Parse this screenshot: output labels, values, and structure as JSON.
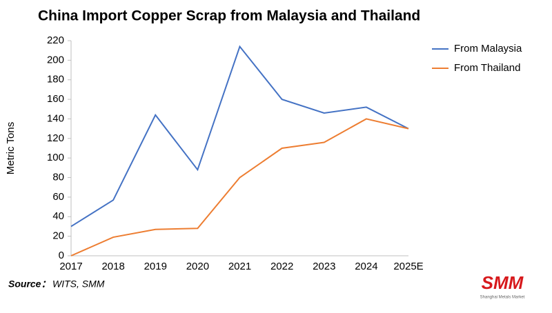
{
  "chart_data": {
    "type": "line",
    "title": "China Import Copper Scrap from Malaysia and Thailand",
    "y_label": "Metric Tons",
    "categories": [
      "2017",
      "2018",
      "2019",
      "2020",
      "2021",
      "2022",
      "2023",
      "2024",
      "2025E"
    ],
    "series": [
      {
        "name": "From Malaysia",
        "color": "#4472c4",
        "values": [
          30,
          57,
          144,
          88,
          214,
          160,
          146,
          152,
          130
        ]
      },
      {
        "name": "From Thailand",
        "color": "#ed7d31",
        "values": [
          0,
          19,
          27,
          28,
          80,
          110,
          116,
          140,
          130
        ]
      }
    ],
    "ylim": [
      0,
      220
    ],
    "yticks": [
      0,
      20,
      40,
      60,
      80,
      100,
      120,
      140,
      160,
      180,
      200,
      220
    ],
    "grid": false,
    "legend": "right",
    "source_label": "Source：",
    "source": "WITS, SMM",
    "logo": "SMM",
    "logo_caption": "Shanghai Metals Market"
  }
}
